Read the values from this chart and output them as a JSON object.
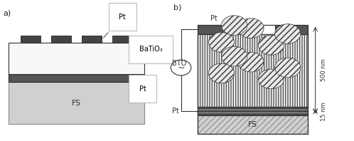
{
  "bg_color": "#ffffff",
  "panel_a_label": "a)",
  "panel_b_label": "b)",
  "fs_color": "#d0d0d0",
  "fs_border_color": "#888888",
  "pt_bottom_color": "#555555",
  "pt_top_color": "#666666",
  "bto_color": "#f5f5f5",
  "bto_border_color": "#333333",
  "dark_gray": "#444444",
  "medium_gray": "#999999",
  "light_gray": "#d8d8d8",
  "label_fs": "FS",
  "label_bto": "BaTiO₃",
  "label_pt_top": "Pt",
  "label_pt_bot": "Pt",
  "label_bto_b": "BTO",
  "label_pt_b": "Pt",
  "label_fs_b": "FS",
  "label_500nm": "500 nm",
  "label_15nm": "15 nm",
  "font_size": 7
}
